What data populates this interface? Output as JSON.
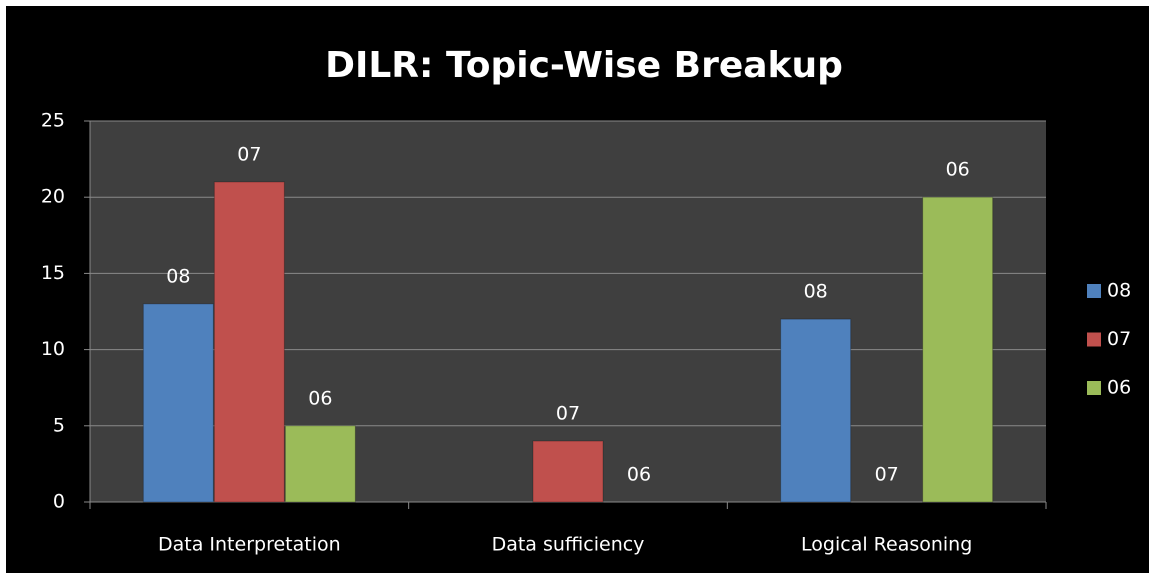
{
  "chart_data": {
    "type": "bar",
    "title": "DILR: Topic-Wise Breakup",
    "categories": [
      "Data Interpretation",
      "Data sufficiency",
      "Logical Reasoning"
    ],
    "series": [
      {
        "name": "08",
        "color": "#4f81bd",
        "values": [
          13,
          null,
          12
        ]
      },
      {
        "name": "07",
        "color": "#c0504d",
        "values": [
          21,
          4,
          0
        ]
      },
      {
        "name": "06",
        "color": "#9bbb59",
        "values": [
          5,
          0,
          20
        ]
      }
    ],
    "ylim": [
      0,
      25
    ],
    "yticks": [
      0,
      5,
      10,
      15,
      20,
      25
    ],
    "grid": true,
    "legend": "right"
  }
}
